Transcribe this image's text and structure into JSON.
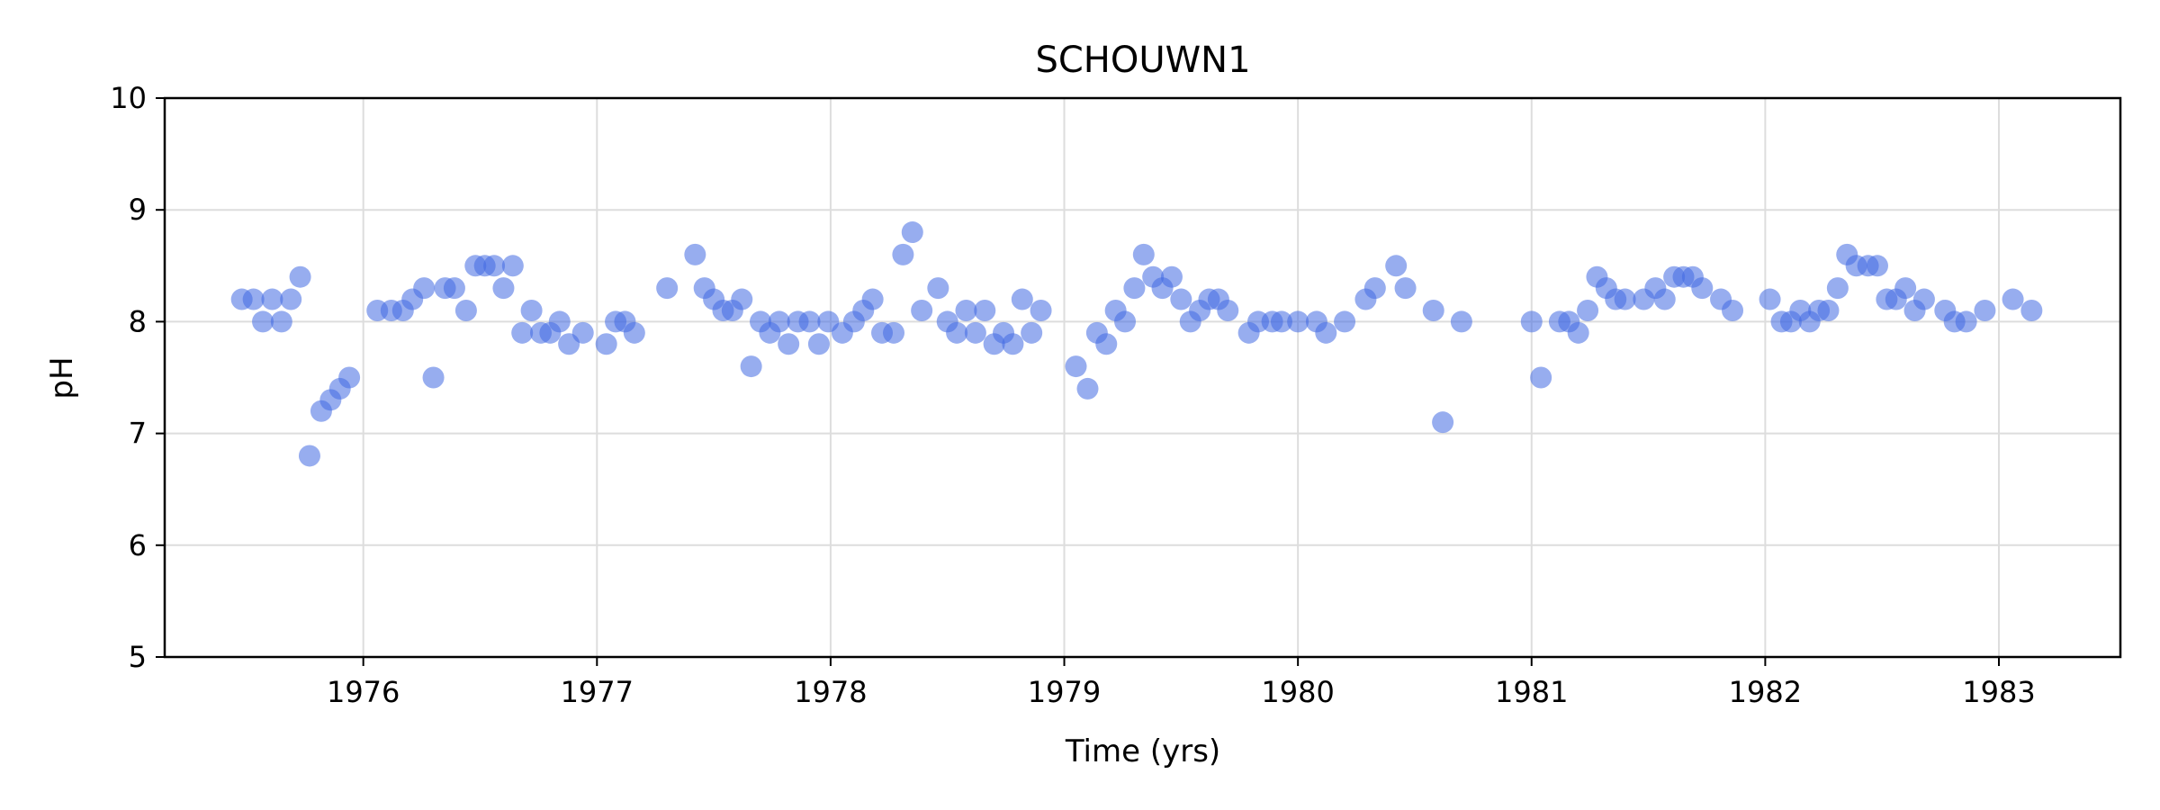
{
  "chart_data": {
    "type": "scatter",
    "title": "SCHOUWN1",
    "xlabel": "Time (yrs)",
    "ylabel": "pH",
    "xlim": [
      1975.15,
      1983.52
    ],
    "ylim": [
      5,
      10
    ],
    "xticks": [
      1976,
      1977,
      1978,
      1979,
      1980,
      1981,
      1982,
      1983
    ],
    "yticks": [
      5,
      6,
      7,
      8,
      9,
      10
    ],
    "grid": true,
    "marker_color": "#4169e1",
    "marker_alpha": 0.55,
    "series": [
      {
        "points": [
          [
            1975.48,
            8.2
          ],
          [
            1975.53,
            8.2
          ],
          [
            1975.57,
            8.0
          ],
          [
            1975.61,
            8.2
          ],
          [
            1975.65,
            8.0
          ],
          [
            1975.69,
            8.2
          ],
          [
            1975.73,
            8.4
          ],
          [
            1975.77,
            6.8
          ],
          [
            1975.82,
            7.2
          ],
          [
            1975.86,
            7.3
          ],
          [
            1975.9,
            7.4
          ],
          [
            1975.94,
            7.5
          ],
          [
            1976.06,
            8.1
          ],
          [
            1976.12,
            8.1
          ],
          [
            1976.17,
            8.1
          ],
          [
            1976.21,
            8.2
          ],
          [
            1976.26,
            8.3
          ],
          [
            1976.3,
            7.5
          ],
          [
            1976.35,
            8.3
          ],
          [
            1976.39,
            8.3
          ],
          [
            1976.44,
            8.1
          ],
          [
            1976.48,
            8.5
          ],
          [
            1976.52,
            8.5
          ],
          [
            1976.56,
            8.5
          ],
          [
            1976.6,
            8.3
          ],
          [
            1976.64,
            8.5
          ],
          [
            1976.68,
            7.9
          ],
          [
            1976.72,
            8.1
          ],
          [
            1976.76,
            7.9
          ],
          [
            1976.8,
            7.9
          ],
          [
            1976.84,
            8.0
          ],
          [
            1976.88,
            7.8
          ],
          [
            1976.94,
            7.9
          ],
          [
            1977.04,
            7.8
          ],
          [
            1977.08,
            8.0
          ],
          [
            1977.12,
            8.0
          ],
          [
            1977.16,
            7.9
          ],
          [
            1977.3,
            8.3
          ],
          [
            1977.42,
            8.6
          ],
          [
            1977.46,
            8.3
          ],
          [
            1977.5,
            8.2
          ],
          [
            1977.54,
            8.1
          ],
          [
            1977.58,
            8.1
          ],
          [
            1977.62,
            8.2
          ],
          [
            1977.66,
            7.6
          ],
          [
            1977.7,
            8.0
          ],
          [
            1977.74,
            7.9
          ],
          [
            1977.78,
            8.0
          ],
          [
            1977.82,
            7.8
          ],
          [
            1977.86,
            8.0
          ],
          [
            1977.91,
            8.0
          ],
          [
            1977.95,
            7.8
          ],
          [
            1977.99,
            8.0
          ],
          [
            1978.05,
            7.9
          ],
          [
            1978.1,
            8.0
          ],
          [
            1978.14,
            8.1
          ],
          [
            1978.18,
            8.2
          ],
          [
            1978.22,
            7.9
          ],
          [
            1978.27,
            7.9
          ],
          [
            1978.31,
            8.6
          ],
          [
            1978.35,
            8.8
          ],
          [
            1978.39,
            8.1
          ],
          [
            1978.46,
            8.3
          ],
          [
            1978.5,
            8.0
          ],
          [
            1978.54,
            7.9
          ],
          [
            1978.58,
            8.1
          ],
          [
            1978.62,
            7.9
          ],
          [
            1978.66,
            8.1
          ],
          [
            1978.7,
            7.8
          ],
          [
            1978.74,
            7.9
          ],
          [
            1978.78,
            7.8
          ],
          [
            1978.82,
            8.2
          ],
          [
            1978.86,
            7.9
          ],
          [
            1978.9,
            8.1
          ],
          [
            1979.05,
            7.6
          ],
          [
            1979.1,
            7.4
          ],
          [
            1979.14,
            7.9
          ],
          [
            1979.18,
            7.8
          ],
          [
            1979.22,
            8.1
          ],
          [
            1979.26,
            8.0
          ],
          [
            1979.3,
            8.3
          ],
          [
            1979.34,
            8.6
          ],
          [
            1979.38,
            8.4
          ],
          [
            1979.42,
            8.3
          ],
          [
            1979.46,
            8.4
          ],
          [
            1979.5,
            8.2
          ],
          [
            1979.54,
            8.0
          ],
          [
            1979.58,
            8.1
          ],
          [
            1979.62,
            8.2
          ],
          [
            1979.66,
            8.2
          ],
          [
            1979.7,
            8.1
          ],
          [
            1979.79,
            7.9
          ],
          [
            1979.83,
            8.0
          ],
          [
            1979.89,
            8.0
          ],
          [
            1979.93,
            8.0
          ],
          [
            1980.0,
            8.0
          ],
          [
            1980.08,
            8.0
          ],
          [
            1980.12,
            7.9
          ],
          [
            1980.2,
            8.0
          ],
          [
            1980.29,
            8.2
          ],
          [
            1980.33,
            8.3
          ],
          [
            1980.42,
            8.5
          ],
          [
            1980.46,
            8.3
          ],
          [
            1980.58,
            8.1
          ],
          [
            1980.62,
            7.1
          ],
          [
            1980.7,
            8.0
          ],
          [
            1981.0,
            8.0
          ],
          [
            1981.04,
            7.5
          ],
          [
            1981.12,
            8.0
          ],
          [
            1981.16,
            8.0
          ],
          [
            1981.2,
            7.9
          ],
          [
            1981.24,
            8.1
          ],
          [
            1981.28,
            8.4
          ],
          [
            1981.32,
            8.3
          ],
          [
            1981.36,
            8.2
          ],
          [
            1981.4,
            8.2
          ],
          [
            1981.48,
            8.2
          ],
          [
            1981.53,
            8.3
          ],
          [
            1981.57,
            8.2
          ],
          [
            1981.61,
            8.4
          ],
          [
            1981.65,
            8.4
          ],
          [
            1981.69,
            8.4
          ],
          [
            1981.73,
            8.3
          ],
          [
            1981.81,
            8.2
          ],
          [
            1981.86,
            8.1
          ],
          [
            1982.02,
            8.2
          ],
          [
            1982.07,
            8.0
          ],
          [
            1982.11,
            8.0
          ],
          [
            1982.15,
            8.1
          ],
          [
            1982.19,
            8.0
          ],
          [
            1982.23,
            8.1
          ],
          [
            1982.27,
            8.1
          ],
          [
            1982.31,
            8.3
          ],
          [
            1982.35,
            8.6
          ],
          [
            1982.39,
            8.5
          ],
          [
            1982.44,
            8.5
          ],
          [
            1982.48,
            8.5
          ],
          [
            1982.52,
            8.2
          ],
          [
            1982.56,
            8.2
          ],
          [
            1982.6,
            8.3
          ],
          [
            1982.64,
            8.1
          ],
          [
            1982.68,
            8.2
          ],
          [
            1982.77,
            8.1
          ],
          [
            1982.81,
            8.0
          ],
          [
            1982.86,
            8.0
          ],
          [
            1982.94,
            8.1
          ],
          [
            1983.06,
            8.2
          ],
          [
            1983.14,
            8.1
          ]
        ]
      }
    ]
  }
}
